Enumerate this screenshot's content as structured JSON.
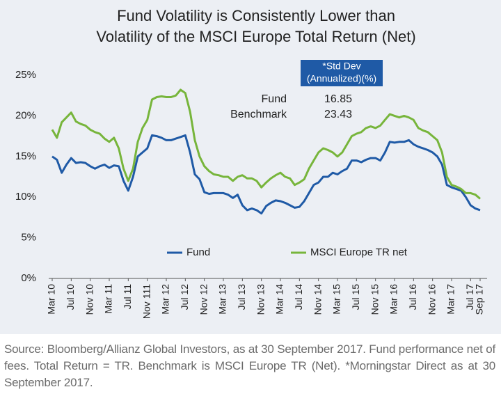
{
  "chart_data": {
    "type": "line",
    "title": [
      "Fund Volatility is Consistently Lower than",
      "Volatility of the MSCI Europe Total Return (Net)"
    ],
    "categories": [
      "Mar 10",
      null,
      null,
      null,
      "Jul 10",
      null,
      null,
      null,
      "Nov 10",
      null,
      null,
      null,
      "Mar 11",
      null,
      null,
      null,
      "Jul 11",
      null,
      null,
      null,
      "Nov 111",
      null,
      null,
      null,
      "Mar 12",
      null,
      null,
      null,
      "Jul 12",
      null,
      null,
      null,
      "Nov 12",
      null,
      null,
      null,
      "Mar 13",
      null,
      null,
      null,
      "Jul 13",
      null,
      null,
      null,
      "Nov 13",
      null,
      null,
      null,
      "Mar 14",
      null,
      null,
      null,
      "Jul 14",
      null,
      null,
      null,
      "Nov 14",
      null,
      null,
      null,
      "Mar 15",
      null,
      null,
      null,
      "Jul 15",
      null,
      null,
      null,
      "Nov 15",
      null,
      null,
      null,
      "Mar 16",
      null,
      null,
      null,
      "Jul 16",
      null,
      null,
      null,
      "Nov 16",
      null,
      null,
      null,
      "Mar 17",
      null,
      null,
      null,
      "Jul 17",
      null,
      "Sep 17"
    ],
    "series": [
      {
        "name": "Fund",
        "color": "#1f5aa6",
        "values": [
          15.0,
          14.6,
          13.0,
          14.0,
          14.8,
          14.2,
          14.3,
          14.2,
          13.8,
          13.5,
          13.8,
          14.0,
          13.6,
          13.9,
          13.8,
          12.0,
          10.8,
          12.5,
          15.0,
          15.5,
          16.0,
          17.6,
          17.5,
          17.3,
          17.0,
          17.0,
          17.2,
          17.4,
          17.6,
          15.5,
          12.8,
          12.2,
          10.6,
          10.4,
          10.5,
          10.5,
          10.5,
          10.3,
          9.9,
          10.3,
          9.0,
          8.4,
          8.6,
          8.4,
          8.0,
          8.9,
          9.3,
          9.6,
          9.5,
          9.3,
          9.0,
          8.7,
          8.8,
          9.5,
          10.5,
          11.5,
          11.8,
          12.5,
          12.5,
          13.0,
          12.8,
          13.2,
          13.5,
          14.5,
          14.5,
          14.3,
          14.6,
          14.8,
          14.8,
          14.5,
          15.5,
          16.8,
          16.7,
          16.8,
          16.8,
          17.0,
          16.5,
          16.2,
          16.0,
          15.8,
          15.5,
          15.0,
          14.0,
          11.5,
          11.2,
          11.0,
          10.8,
          10.0,
          9.0,
          8.6,
          8.4
        ]
      },
      {
        "name": "MSCI Europe TR net",
        "color": "#77b53b",
        "values": [
          18.3,
          17.3,
          19.2,
          19.8,
          20.4,
          19.3,
          19.0,
          18.8,
          18.3,
          18.0,
          17.8,
          17.2,
          16.8,
          17.3,
          16.0,
          13.5,
          12.0,
          13.5,
          16.8,
          18.5,
          19.5,
          22.0,
          22.3,
          22.4,
          22.3,
          22.3,
          22.5,
          23.2,
          22.8,
          20.5,
          17.0,
          15.0,
          13.8,
          13.2,
          12.8,
          12.7,
          12.5,
          12.5,
          12.0,
          12.5,
          12.7,
          12.3,
          12.3,
          12.0,
          11.2,
          11.8,
          12.3,
          12.7,
          13.0,
          12.5,
          12.3,
          11.5,
          11.8,
          12.2,
          13.5,
          14.5,
          15.5,
          16.0,
          15.8,
          15.5,
          15.0,
          15.5,
          16.5,
          17.5,
          17.8,
          18.0,
          18.5,
          18.7,
          18.5,
          18.8,
          19.5,
          20.2,
          20.0,
          19.8,
          20.0,
          19.8,
          19.5,
          18.5,
          18.2,
          18.0,
          17.5,
          17.0,
          15.5,
          12.5,
          11.5,
          11.3,
          11.0,
          10.5,
          10.5,
          10.3,
          9.8
        ]
      }
    ],
    "ylim": [
      0,
      25
    ],
    "yticks": [
      {
        "value": 0,
        "label": "0%"
      },
      {
        "value": 5,
        "label": "5%"
      },
      {
        "value": 10,
        "label": "10%"
      },
      {
        "value": 15,
        "label": "15%"
      },
      {
        "value": 20,
        "label": "20%"
      },
      {
        "value": 25,
        "label": "25%"
      }
    ],
    "grid": false,
    "legend": "bottom",
    "stats": {
      "header": [
        "*Std Dev",
        "(Annualized)(%)"
      ],
      "color": "#1f5aa6",
      "rows": [
        [
          "Fund",
          16.85
        ],
        [
          "Benchmark",
          23.43
        ]
      ]
    }
  },
  "footnote": "Source: Bloomberg/Allianz Global Investors, as at 30 September 2017. Fund performance net of fees. Total Return = TR. Benchmark is MSCI Europe TR (Net). *Morningstar Direct as at 30 September 2017."
}
